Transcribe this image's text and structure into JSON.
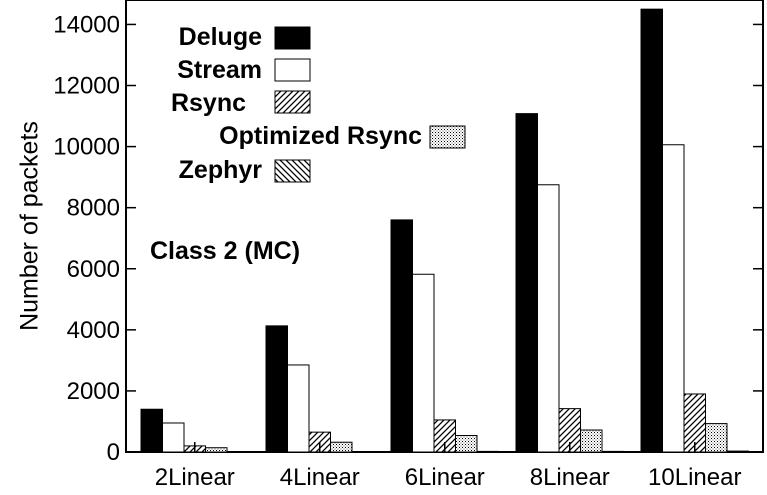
{
  "chart_data": {
    "type": "bar",
    "ylabel": "Number of packets",
    "xlabel": "",
    "ylim": [
      0,
      14800
    ],
    "yticks": [
      0,
      2000,
      4000,
      6000,
      8000,
      10000,
      12000,
      14000
    ],
    "categories": [
      "2Linear",
      "4Linear",
      "6Linear",
      "8Linear",
      "10Linear"
    ],
    "series": [
      {
        "name": "Deluge",
        "pattern": "solid-black",
        "values": [
          1400,
          4130,
          7600,
          11080,
          14500
        ]
      },
      {
        "name": "Stream",
        "pattern": "white",
        "values": [
          950,
          2850,
          5820,
          8750,
          10060
        ]
      },
      {
        "name": "Rsync",
        "pattern": "diagonal-up",
        "values": [
          200,
          650,
          1050,
          1420,
          1900
        ]
      },
      {
        "name": "Optimized Rsync",
        "pattern": "dots",
        "values": [
          140,
          320,
          540,
          720,
          930
        ]
      },
      {
        "name": "Zephyr",
        "pattern": "diagonal-down",
        "values": [
          0,
          0,
          20,
          20,
          30
        ]
      }
    ],
    "annotation": "Class 2 (MC)",
    "grid": false,
    "legend_position": "top-left"
  },
  "colors": {
    "bar_fill_dark": "#000000",
    "bar_fill_light": "#ffffff",
    "axis": "#000000"
  }
}
